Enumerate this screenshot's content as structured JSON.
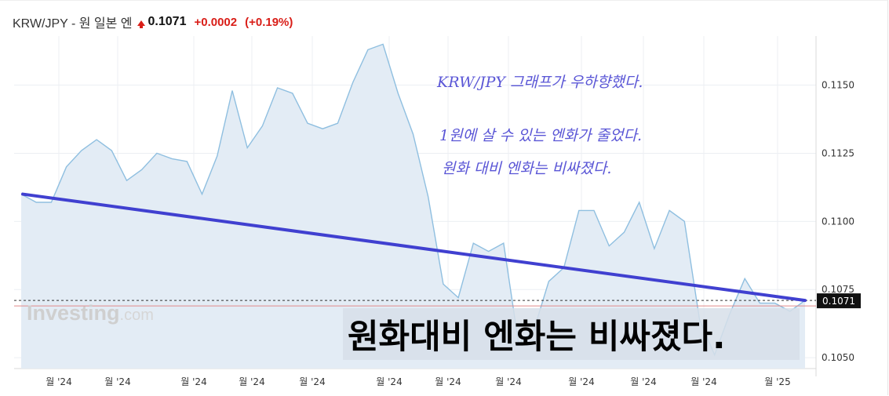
{
  "header": {
    "pair_label": "KRW/JPY - 원 일본 엔",
    "direction_icon": "up-arrow-icon",
    "price": "0.1071",
    "change": "+0.0002",
    "change_percent": "(+0.19%)",
    "up_color": "#d91e18"
  },
  "watermark": {
    "brand": "Investing",
    "suffix": ".com"
  },
  "annotations": {
    "line1": "KRW/JPY 그래프가 우하향했다.",
    "line2": "1원에 살 수 있는 엔화가 줄었다.",
    "line3": "원화 대비 엔화는 비싸졌다.",
    "color": "#5a56d6"
  },
  "caption": "원화대비 엔화는 비싸졌다.",
  "chart_data": {
    "type": "area",
    "title": "",
    "xlabel": "",
    "ylabel": "",
    "ylim": [
      0.1046,
      0.1168
    ],
    "y_ticks": [
      "0.1150",
      "0.1125",
      "0.1100",
      "0.1075",
      "0.1050"
    ],
    "x_ticks": [
      "월 '24",
      "월 '24",
      "월 '24",
      "월 '24",
      "월 '24",
      "월 '24",
      "월 '24",
      "월 '24",
      "월 '24",
      "월 '24",
      "월 '24",
      "월 '25"
    ],
    "current_value": 0.1071,
    "current_label": "0.1071",
    "series": [
      {
        "values": [
          0.111,
          0.1107,
          0.1107,
          0.112,
          0.1126,
          0.113,
          0.1126,
          0.1115,
          0.1119,
          0.1125,
          0.1123,
          0.1122,
          0.111,
          0.1124,
          0.1148,
          0.1127,
          0.1135,
          0.1149,
          0.1147,
          0.1136,
          0.1134,
          0.1136,
          0.1151,
          0.1163,
          0.1165,
          0.1147,
          0.1132,
          0.1109,
          0.1077,
          0.1072,
          0.1092,
          0.1089,
          0.1092,
          0.1055,
          0.106,
          0.1078,
          0.1083,
          0.1104,
          0.1104,
          0.1091,
          0.1096,
          0.1107,
          0.109,
          0.1104,
          0.11,
          0.1064,
          0.1051,
          0.1066,
          0.1079,
          0.107,
          0.107,
          0.1067,
          0.1071
        ],
        "line_color": "#8fbfe0",
        "fill_color": "#e3ecf5"
      }
    ],
    "trendline": {
      "start": 0.111,
      "end": 0.1071,
      "color": "#4040d0"
    },
    "reference_line": {
      "value": 0.1069,
      "color": "#e08a8a"
    },
    "grid": true,
    "colors": {
      "grid": "#eceff3",
      "axis_text": "#333333",
      "price_box": "#111111"
    }
  }
}
